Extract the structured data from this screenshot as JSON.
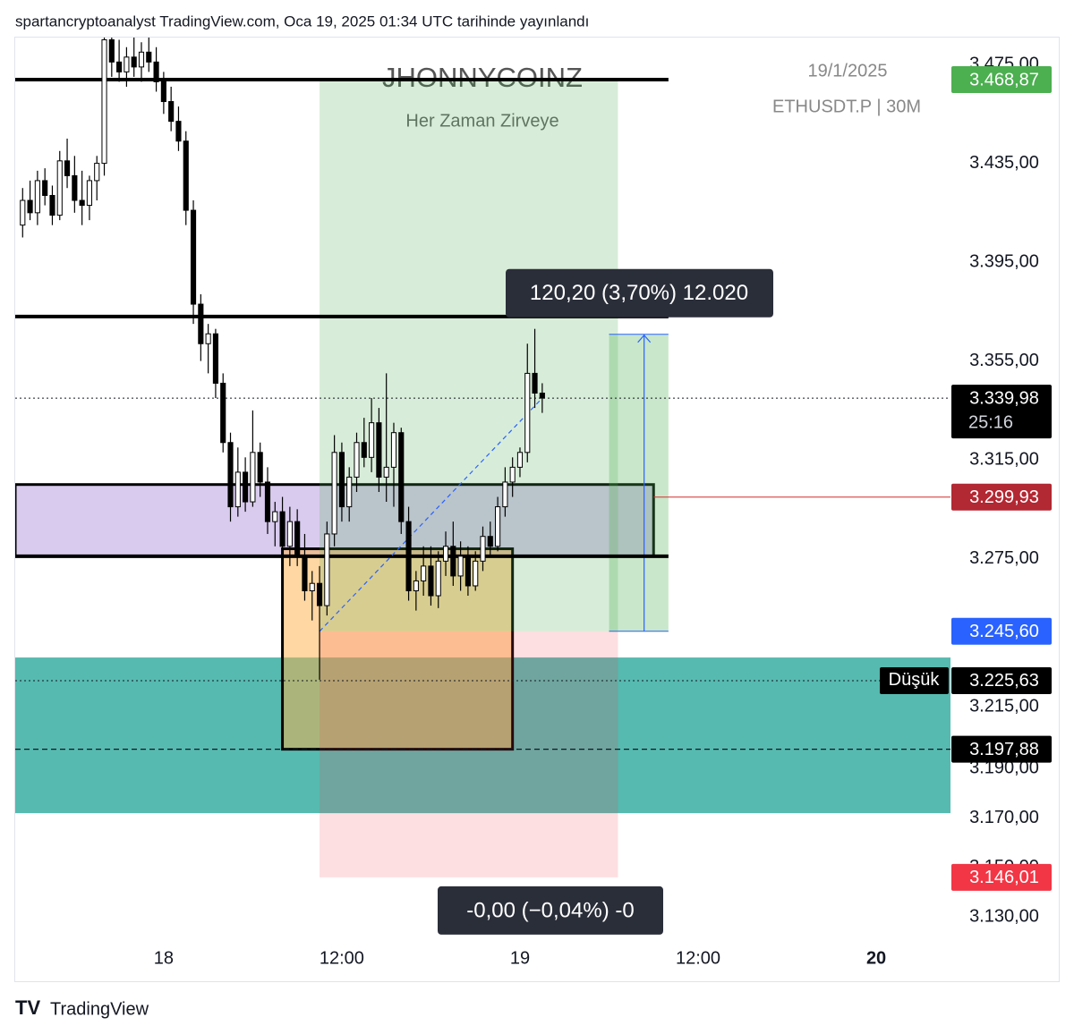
{
  "header": {
    "source": "spartancryptoanalyst TradingView.com, Oca 19, 2025 01:34 UTC tarihinde yayınlandı"
  },
  "footer": {
    "brand": "TradingView"
  },
  "chart_data": {
    "type": "candlestick",
    "title": "JHONNYCOINZ",
    "subtitle": "Her Zaman Zirveye",
    "date": "19/1/2025",
    "symbol": "ETHUSDT.P | 30M",
    "up_color": "#ffffff",
    "down_color": "#000000",
    "wick_color": "#000000",
    "x": [
      1,
      2,
      3,
      4,
      5,
      6,
      7,
      8,
      9,
      10,
      11,
      12,
      13,
      14,
      15,
      16,
      17,
      18,
      19,
      20,
      21,
      22,
      23,
      24,
      25,
      26,
      27,
      28,
      29,
      30,
      31,
      32,
      33,
      34,
      35,
      36,
      37,
      38,
      39,
      40,
      41,
      42,
      43,
      44,
      45,
      46,
      47,
      48,
      49,
      50,
      51,
      52,
      53,
      54,
      55,
      56,
      57,
      58,
      59,
      60,
      61,
      62,
      63,
      64,
      65,
      66,
      67,
      68,
      69,
      70,
      71
    ],
    "open": [
      3410,
      3420,
      3415,
      3428,
      3422,
      3414,
      3436,
      3430,
      3420,
      3418,
      3428,
      3435,
      3485,
      3476,
      3472,
      3478,
      3474,
      3480,
      3476,
      3468,
      3460,
      3452,
      3444,
      3416,
      3378,
      3362,
      3366,
      3346,
      3322,
      3296,
      3310,
      3298,
      3318,
      3306,
      3290,
      3294,
      3280,
      3290,
      3276,
      3262,
      3265,
      3256,
      3285,
      3318,
      3296,
      3308,
      3322,
      3316,
      3330,
      3308,
      3312,
      3326,
      3290,
      3262,
      3266,
      3272,
      3260,
      3274,
      3280,
      3268,
      3276,
      3264,
      3274,
      3284,
      3280,
      3296,
      3306,
      3312,
      3318,
      3350,
      3342
    ],
    "high": [
      3425,
      3428,
      3432,
      3433,
      3426,
      3440,
      3445,
      3438,
      3432,
      3430,
      3438,
      3490,
      3492,
      3485,
      3482,
      3486,
      3484,
      3490,
      3482,
      3472,
      3466,
      3458,
      3448,
      3420,
      3382,
      3370,
      3368,
      3350,
      3326,
      3320,
      3316,
      3335,
      3322,
      3312,
      3298,
      3300,
      3296,
      3295,
      3285,
      3270,
      3272,
      3290,
      3325,
      3322,
      3312,
      3326,
      3332,
      3340,
      3336,
      3350,
      3330,
      3328,
      3296,
      3270,
      3280,
      3280,
      3278,
      3286,
      3290,
      3282,
      3280,
      3278,
      3288,
      3290,
      3300,
      3312,
      3316,
      3320,
      3362,
      3368,
      3346
    ],
    "low": [
      3405,
      3412,
      3410,
      3418,
      3410,
      3412,
      3425,
      3415,
      3410,
      3412,
      3420,
      3430,
      3470,
      3468,
      3466,
      3470,
      3468,
      3472,
      3464,
      3455,
      3448,
      3440,
      3410,
      3370,
      3355,
      3350,
      3340,
      3318,
      3290,
      3292,
      3294,
      3296,
      3300,
      3285,
      3280,
      3276,
      3272,
      3272,
      3258,
      3250,
      3226,
      3252,
      3280,
      3290,
      3290,
      3302,
      3312,
      3310,
      3302,
      3298,
      3296,
      3285,
      3258,
      3254,
      3260,
      3256,
      3255,
      3268,
      3264,
      3262,
      3260,
      3262,
      3270,
      3276,
      3278,
      3292,
      3300,
      3308,
      3314,
      3336,
      3334
    ],
    "close": [
      3420,
      3415,
      3428,
      3422,
      3414,
      3436,
      3430,
      3420,
      3418,
      3428,
      3435,
      3485,
      3476,
      3472,
      3478,
      3474,
      3480,
      3476,
      3468,
      3460,
      3452,
      3444,
      3416,
      3378,
      3362,
      3366,
      3346,
      3322,
      3296,
      3310,
      3298,
      3318,
      3306,
      3290,
      3294,
      3280,
      3290,
      3276,
      3262,
      3265,
      3256,
      3285,
      3318,
      3296,
      3308,
      3322,
      3316,
      3330,
      3308,
      3312,
      3326,
      3290,
      3262,
      3266,
      3272,
      3260,
      3274,
      3280,
      3268,
      3276,
      3264,
      3274,
      3284,
      3280,
      3296,
      3306,
      3312,
      3318,
      3350,
      3342,
      3339.98
    ],
    "xlim": [
      0,
      126
    ],
    "xticks": [
      {
        "value": 20,
        "label": "18"
      },
      {
        "value": 44,
        "label": "12:00"
      },
      {
        "value": 68,
        "label": "19"
      },
      {
        "value": 92,
        "label": "12:00"
      },
      {
        "value": 116,
        "label": "20"
      }
    ],
    "ylim": [
      3121,
      3483
    ],
    "yticks": [
      {
        "value": 3475,
        "label": "3.475,00"
      },
      {
        "value": 3435,
        "label": "3.435,00"
      },
      {
        "value": 3395,
        "label": "3.395,00"
      },
      {
        "value": 3355,
        "label": "3.355,00"
      },
      {
        "value": 3315,
        "label": "3.315,00"
      },
      {
        "value": 3275,
        "label": "3.275,00"
      },
      {
        "value": 3215,
        "label": "3.215,00"
      },
      {
        "value": 3190,
        "label": "3.190,00"
      },
      {
        "value": 3170,
        "label": "3.170,00"
      },
      {
        "value": 3150,
        "label": "3.150,00"
      },
      {
        "value": 3130,
        "label": "3.130,00"
      }
    ],
    "grid": false,
    "zones": [
      {
        "low": 3172,
        "high": 3235,
        "x0": 0,
        "x1": 126,
        "color": "rgba(38,166,154,0.78)",
        "border": "none"
      },
      {
        "low": 3276,
        "high": 3305,
        "x0": 0,
        "x1": 86,
        "color": "rgba(186,160,224,0.55)",
        "border": "#000000"
      },
      {
        "low": 3197.88,
        "high": 3279,
        "x0": 36,
        "x1": 67,
        "color": "rgba(255,176,70,0.5)",
        "border": "#000000"
      }
    ],
    "position": {
      "entry": 3245.6,
      "target": 3468.87,
      "stop": 3146.01,
      "x0": 41,
      "x1": 81.2,
      "profit_color": "rgba(76,175,80,0.22)",
      "loss_color": "rgba(242,54,69,0.16)",
      "label": "-0,00 (−0,04%) -0"
    },
    "measure": {
      "from": 3245.6,
      "to": 3365.8,
      "x0": 80,
      "x1": 88,
      "color": "rgba(76,175,80,0.3)",
      "arrow_color": "#2962ff",
      "label": "120,20 (3,70%) 12.020"
    },
    "lines": [
      {
        "value": 3468.87,
        "x0": 0,
        "x1": 88,
        "color": "#000000",
        "width": 4,
        "style": "solid"
      },
      {
        "value": 3373,
        "x0": 0,
        "x1": 88,
        "color": "#000000",
        "width": 4,
        "style": "solid"
      },
      {
        "value": 3276,
        "x0": 0,
        "x1": 88,
        "color": "#000000",
        "width": 4,
        "style": "solid"
      },
      {
        "value": 3299.93,
        "x0": 86,
        "x1": 126,
        "color": "#d32f2f",
        "width": 1,
        "style": "solid"
      },
      {
        "value": 3339.98,
        "x0": 0,
        "x1": 126,
        "color": "#131722",
        "width": 1,
        "style": "dotted"
      },
      {
        "value": 3225.63,
        "x0": 0,
        "x1": 126,
        "color": "#131722",
        "width": 1,
        "style": "dotted"
      },
      {
        "value": 3197.88,
        "x0": 0,
        "x1": 126,
        "color": "#131722",
        "width": 1.2,
        "style": "dashed"
      }
    ],
    "price_labels": [
      {
        "value": 3468.87,
        "label": "3.468,87",
        "color": "#4caf50"
      },
      {
        "value": 3339.98,
        "label": "3.339,98",
        "color": "#000000",
        "countdown": "25:16"
      },
      {
        "value": 3299.93,
        "label": "3.299,93",
        "color": "#b22833"
      },
      {
        "value": 3245.6,
        "label": "3.245,60",
        "color": "#2962ff"
      },
      {
        "value": 3225.63,
        "label": "3.225,63",
        "color": "#000000",
        "tag": "Düşük"
      },
      {
        "value": 3197.88,
        "label": "3.197,88",
        "color": "#000000"
      },
      {
        "value": 3146.01,
        "label": "3.146,01",
        "color": "#f23645"
      }
    ]
  }
}
